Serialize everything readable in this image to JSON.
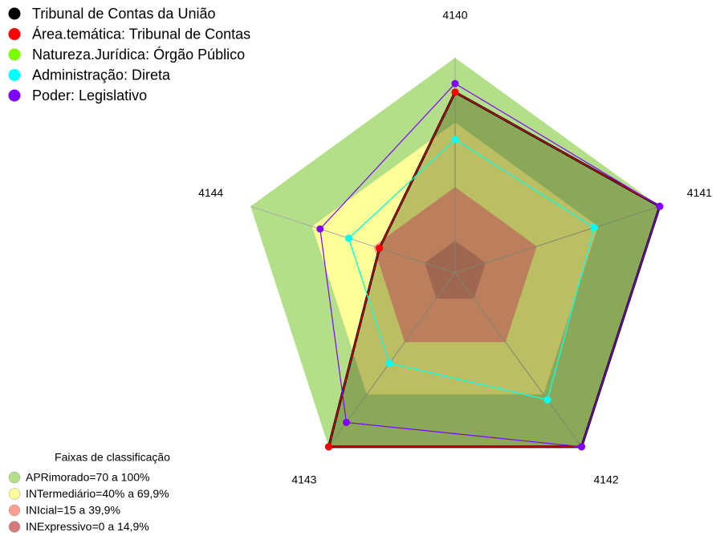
{
  "chart_data": {
    "type": "radar",
    "categories": [
      "4140",
      "4141",
      "4142",
      "4143",
      "4144"
    ],
    "ylim": [
      0,
      100
    ],
    "series": [
      {
        "name": "Tribunal de Contas da União",
        "color": "#000000",
        "values": [
          84,
          100,
          100,
          100,
          37
        ]
      },
      {
        "name": "Área.temática: Tribunal de Contas",
        "color": "#ff0000",
        "values": [
          84,
          100,
          100,
          100,
          37
        ]
      },
      {
        "name": "Natureza.Jurídica: Órgão Público",
        "color": "#7cfc00",
        "values": [
          62,
          68,
          73,
          52,
          52
        ]
      },
      {
        "name": "Administração: Direta",
        "color": "#00ffff",
        "values": [
          62,
          68,
          73,
          52,
          52
        ]
      },
      {
        "name": "Poder: Legislativo",
        "color": "#8000ff",
        "values": [
          88,
          100,
          100,
          86,
          66
        ]
      }
    ],
    "bands_title": "Faixas de classificação",
    "bands": [
      {
        "label": "APRimorado=70 a 100%",
        "from": 70,
        "to": 100,
        "color": "#b3df88"
      },
      {
        "label": "INTermediário=40% a 69,9%",
        "from": 40,
        "to": 69.9,
        "color": "#ffff99"
      },
      {
        "label": "INIcial=15 a 39,9%",
        "from": 15,
        "to": 39.9,
        "color": "#ff9f8f"
      },
      {
        "label": "INExpressivo=0 a 14,9%",
        "from": 0,
        "to": 14.9,
        "color": "#d47a7a"
      }
    ]
  }
}
